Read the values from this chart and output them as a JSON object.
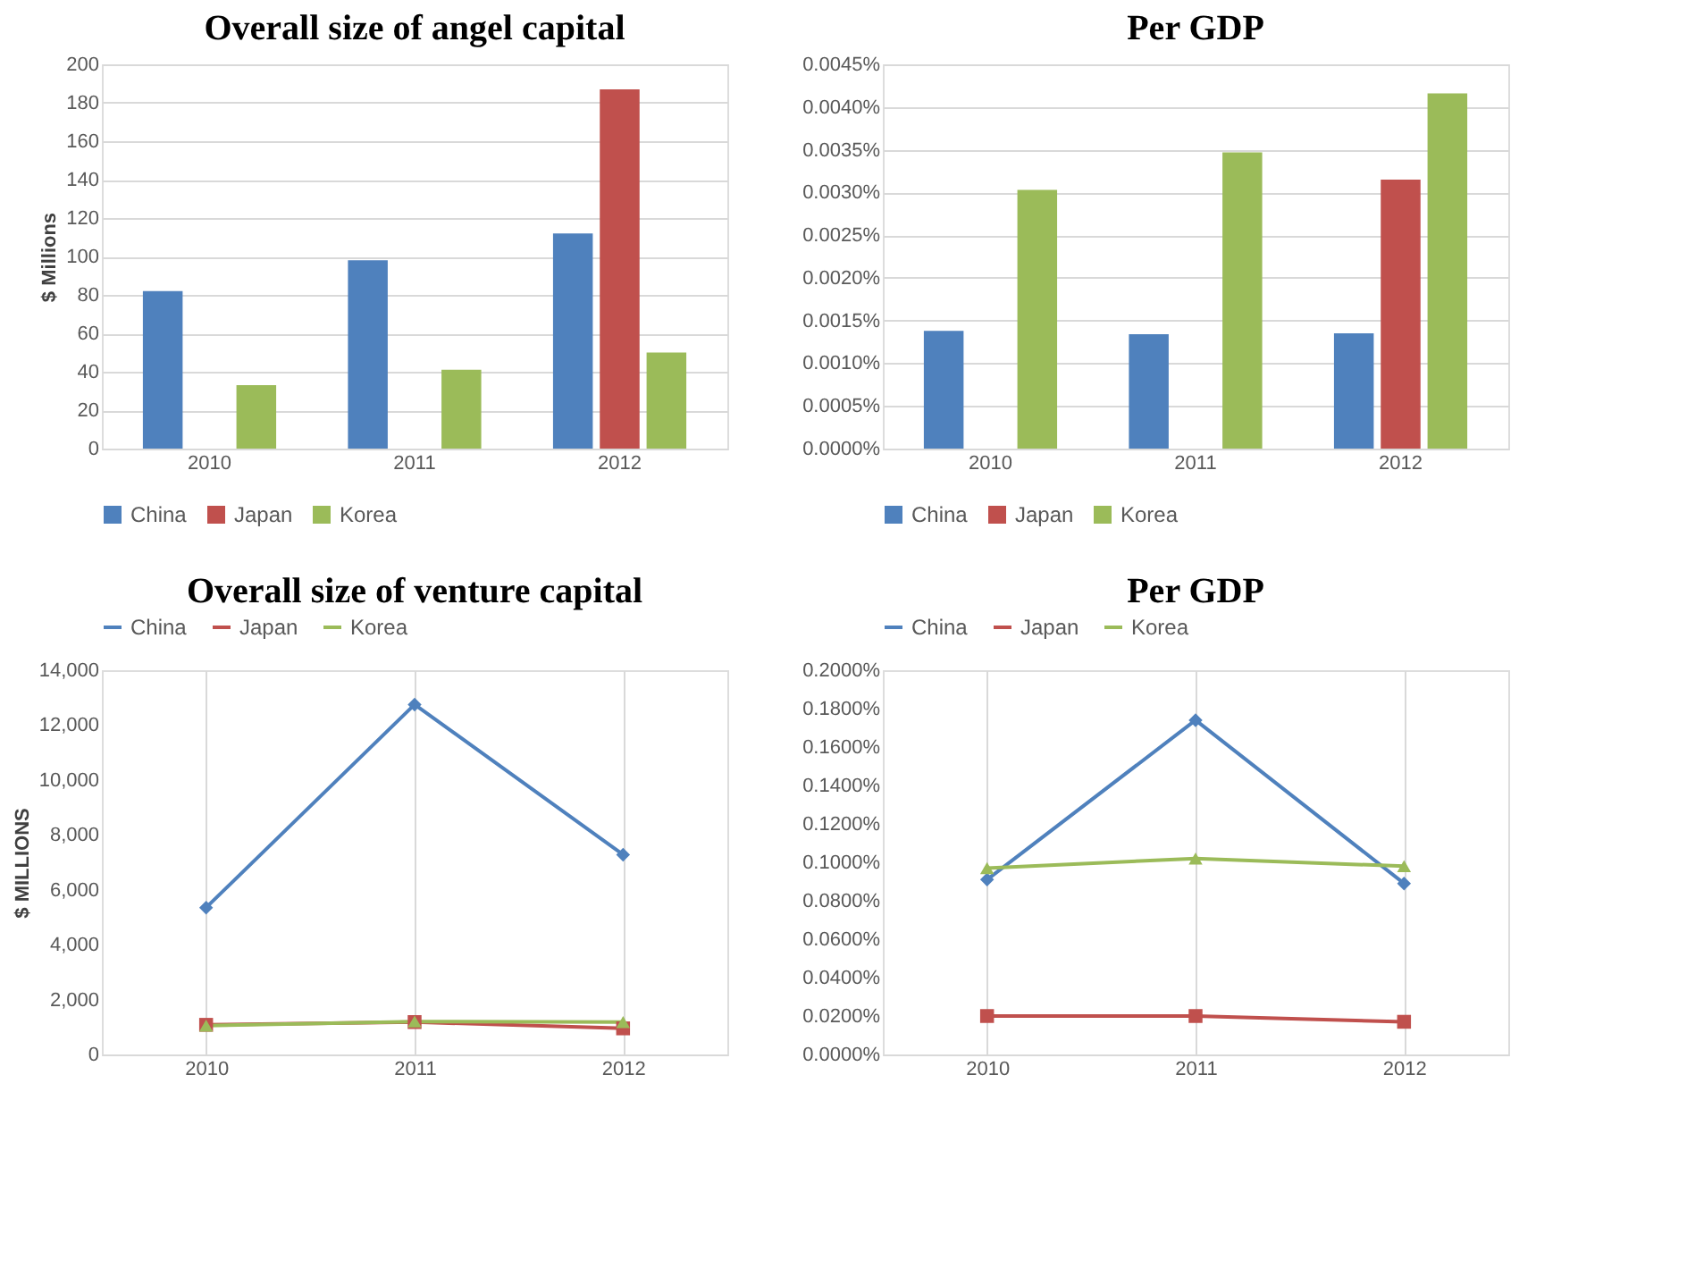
{
  "chart_data": [
    {
      "type": "bar",
      "title": "Overall size of angel capital",
      "ylabel": "$ Millions",
      "categories": [
        "2010",
        "2011",
        "2012"
      ],
      "series": [
        {
          "name": "China",
          "color": "#4f81bd",
          "values": [
            82,
            98,
            112
          ]
        },
        {
          "name": "Japan",
          "color": "#c0504d",
          "values": [
            null,
            null,
            187
          ]
        },
        {
          "name": "Korea",
          "color": "#9bbb59",
          "values": [
            33,
            41,
            50
          ]
        }
      ],
      "ylim": [
        0,
        200
      ],
      "yticks": [
        0,
        20,
        40,
        60,
        80,
        100,
        120,
        140,
        160,
        180,
        200
      ],
      "grid": "y",
      "legend": "bottom"
    },
    {
      "type": "bar",
      "title": "Per GDP",
      "categories": [
        "2010",
        "2011",
        "2012"
      ],
      "series": [
        {
          "name": "China",
          "color": "#4f81bd",
          "values": [
            0.00138,
            0.00134,
            0.00135
          ]
        },
        {
          "name": "Japan",
          "color": "#c0504d",
          "values": [
            null,
            null,
            0.00315
          ]
        },
        {
          "name": "Korea",
          "color": "#9bbb59",
          "values": [
            0.00303,
            0.00347,
            0.00416
          ]
        }
      ],
      "ylim": [
        0,
        0.0045
      ],
      "yticks": [
        {
          "value": 0,
          "label": "0.0000%"
        },
        {
          "value": 0.0005,
          "label": "0.0005%"
        },
        {
          "value": 0.001,
          "label": "0.0010%"
        },
        {
          "value": 0.0015,
          "label": "0.0015%"
        },
        {
          "value": 0.002,
          "label": "0.0020%"
        },
        {
          "value": 0.0025,
          "label": "0.0025%"
        },
        {
          "value": 0.003,
          "label": "0.0030%"
        },
        {
          "value": 0.0035,
          "label": "0.0035%"
        },
        {
          "value": 0.004,
          "label": "0.0040%"
        },
        {
          "value": 0.0045,
          "label": "0.0045%"
        }
      ],
      "grid": "y",
      "legend": "bottom"
    },
    {
      "type": "line",
      "title": "Overall size of venture capital",
      "ylabel": "$ MILLIONS",
      "categories": [
        "2010",
        "2011",
        "2012"
      ],
      "series": [
        {
          "name": "China",
          "color": "#4f81bd",
          "marker": "diamond",
          "values": [
            5350,
            12750,
            7280
          ]
        },
        {
          "name": "Japan",
          "color": "#c0504d",
          "marker": "square",
          "values": [
            1080,
            1180,
            950
          ]
        },
        {
          "name": "Korea",
          "color": "#9bbb59",
          "marker": "triangle",
          "values": [
            1050,
            1200,
            1180
          ]
        }
      ],
      "ylim": [
        0,
        14000
      ],
      "yticks": [
        0,
        {
          "value": 2000,
          "label": "2,000"
        },
        {
          "value": 4000,
          "label": "4,000"
        },
        {
          "value": 6000,
          "label": "6,000"
        },
        {
          "value": 8000,
          "label": "8,000"
        },
        {
          "value": 10000,
          "label": "10,000"
        },
        {
          "value": 12000,
          "label": "12,000"
        },
        {
          "value": 14000,
          "label": "14,000"
        }
      ],
      "grid": "x",
      "legend": "top"
    },
    {
      "type": "line",
      "title": "Per GDP",
      "categories": [
        "2010",
        "2011",
        "2012"
      ],
      "series": [
        {
          "name": "China",
          "color": "#4f81bd",
          "marker": "diamond",
          "values": [
            0.091,
            0.174,
            0.089
          ]
        },
        {
          "name": "Japan",
          "color": "#c0504d",
          "marker": "square",
          "values": [
            0.02,
            0.02,
            0.017
          ]
        },
        {
          "name": "Korea",
          "color": "#9bbb59",
          "marker": "triangle",
          "values": [
            0.097,
            0.102,
            0.098
          ]
        }
      ],
      "ylim": [
        0,
        0.2
      ],
      "yticks": [
        {
          "value": 0,
          "label": "0.0000%"
        },
        {
          "value": 0.02,
          "label": "0.0200%"
        },
        {
          "value": 0.04,
          "label": "0.0400%"
        },
        {
          "value": 0.06,
          "label": "0.0600%"
        },
        {
          "value": 0.08,
          "label": "0.0800%"
        },
        {
          "value": 0.1,
          "label": "0.1000%"
        },
        {
          "value": 0.12,
          "label": "0.1200%"
        },
        {
          "value": 0.14,
          "label": "0.1400%"
        },
        {
          "value": 0.16,
          "label": "0.1600%"
        },
        {
          "value": 0.18,
          "label": "0.1800%"
        },
        {
          "value": 0.2,
          "label": "0.2000%"
        }
      ],
      "grid": "x",
      "legend": "top"
    }
  ]
}
